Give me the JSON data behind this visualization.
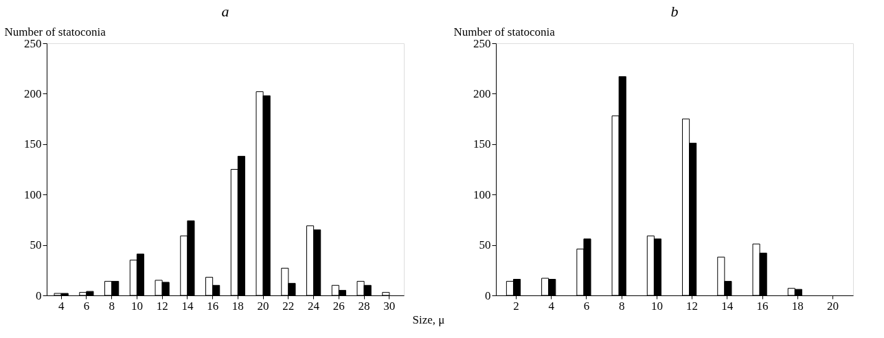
{
  "chart_data": [
    {
      "type": "bar",
      "title": "a",
      "ylabel": "Number of statoconia",
      "xlabel": "Size, μ",
      "categories": [
        "4",
        "6",
        "8",
        "10",
        "12",
        "14",
        "16",
        "18",
        "20",
        "22",
        "24",
        "26",
        "28",
        "30"
      ],
      "series": [
        {
          "color": "#ffffff",
          "values": [
            2,
            3,
            14,
            35,
            15,
            59,
            18,
            125,
            202,
            27,
            69,
            10,
            14,
            3
          ]
        },
        {
          "color": "#000000",
          "values": [
            2,
            4,
            14,
            41,
            13,
            74,
            10,
            138,
            198,
            12,
            65,
            5,
            10,
            null
          ]
        }
      ],
      "ylim": [
        0,
        250
      ],
      "yticks": [
        0,
        50,
        100,
        150,
        200,
        250
      ],
      "grid": false,
      "legend": false
    },
    {
      "type": "bar",
      "title": "b",
      "ylabel": "Number of statoconia",
      "categories": [
        "2",
        "4",
        "6",
        "8",
        "10",
        "12",
        "14",
        "16",
        "18",
        "20"
      ],
      "series": [
        {
          "color": "#ffffff",
          "values": [
            14,
            17,
            46,
            178,
            59,
            175,
            38,
            51,
            7,
            null
          ]
        },
        {
          "color": "#000000",
          "values": [
            16,
            16,
            56,
            217,
            56,
            151,
            14,
            42,
            6,
            null
          ]
        }
      ],
      "ylim": [
        0,
        250
      ],
      "yticks": [
        0,
        50,
        100,
        150,
        200,
        250
      ],
      "grid": false,
      "legend": false
    }
  ]
}
